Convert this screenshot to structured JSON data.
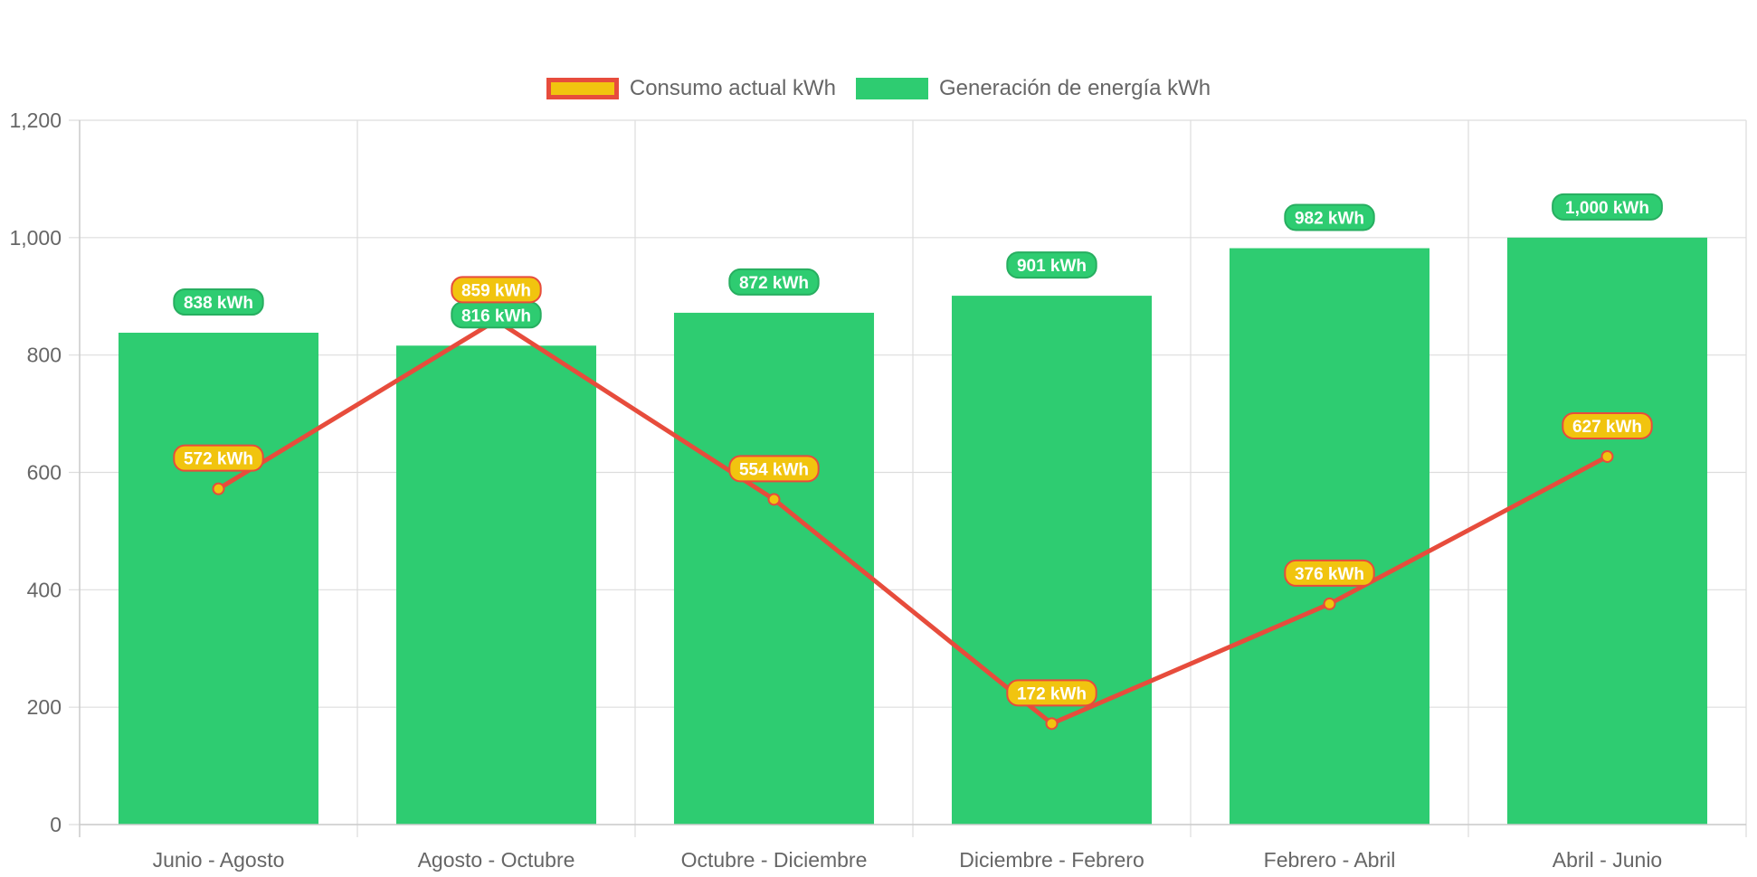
{
  "chart_data": {
    "type": "bar",
    "categories": [
      "Junio - Agosto",
      "Agosto - Octubre",
      "Octubre - Diciembre",
      "Diciembre - Febrero",
      "Febrero - Abril",
      "Abril - Junio"
    ],
    "series": [
      {
        "name": "Consumo actual kWh",
        "type": "line",
        "values": [
          572,
          859,
          554,
          172,
          376,
          627
        ],
        "labels": [
          "572 kWh",
          "859 kWh",
          "554 kWh",
          "172 kWh",
          "376 kWh",
          "627 kWh"
        ],
        "line_color": "#e74c3c",
        "fill_color": "#f1c40f"
      },
      {
        "name": "Generación de energía kWh",
        "type": "bar",
        "values": [
          838,
          816,
          872,
          901,
          982,
          1000
        ],
        "labels": [
          "838 kWh",
          "816 kWh",
          "872 kWh",
          "901 kWh",
          "982 kWh",
          "1,000 kWh"
        ],
        "color": "#2ecc71",
        "label_border": "#27ae60"
      }
    ],
    "yticks": [
      "0",
      "200",
      "400",
      "600",
      "800",
      "1,000",
      "1,200"
    ],
    "ylim": [
      0,
      1200
    ],
    "grid": true,
    "legend_position": "top-center",
    "title": "",
    "xlabel": "",
    "ylabel": ""
  }
}
